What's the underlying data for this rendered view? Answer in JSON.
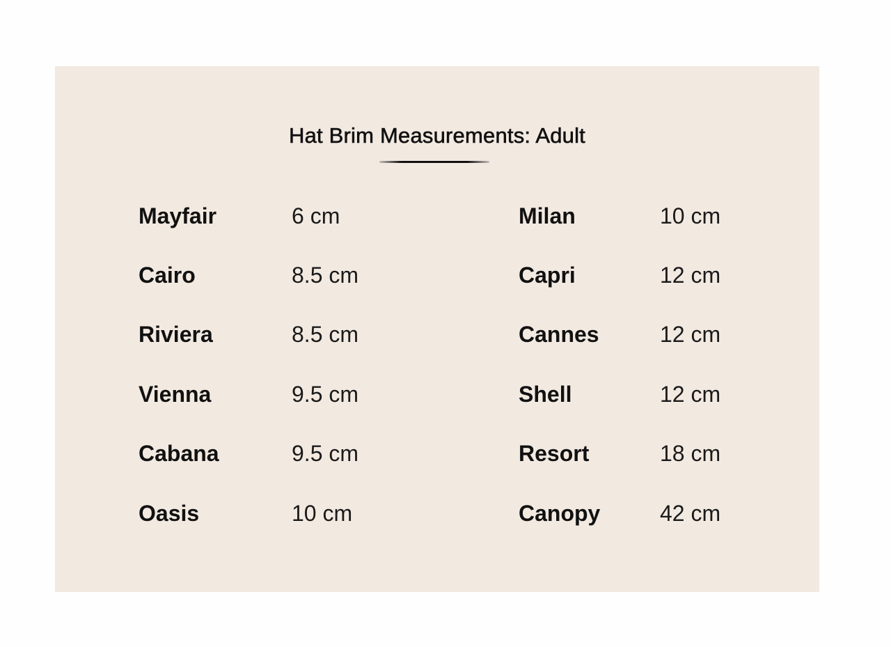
{
  "title": "Hat Brim Measurements: Adult",
  "left_column": [
    {
      "name": "Mayfair",
      "value": "6 cm"
    },
    {
      "name": "Cairo",
      "value": "8.5 cm"
    },
    {
      "name": "Riviera",
      "value": "8.5 cm"
    },
    {
      "name": "Vienna",
      "value": "9.5 cm"
    },
    {
      "name": "Cabana",
      "value": "9.5 cm"
    },
    {
      "name": "Oasis",
      "value": "10 cm"
    }
  ],
  "right_column": [
    {
      "name": "Milan",
      "value": "10 cm"
    },
    {
      "name": "Capri",
      "value": "12 cm"
    },
    {
      "name": "Cannes",
      "value": "12 cm"
    },
    {
      "name": "Shell",
      "value": "12 cm"
    },
    {
      "name": "Resort",
      "value": "18 cm"
    },
    {
      "name": "Canopy",
      "value": "42 cm"
    }
  ],
  "colors": {
    "panel_background": "#f2e9e1",
    "text": "#111111"
  }
}
